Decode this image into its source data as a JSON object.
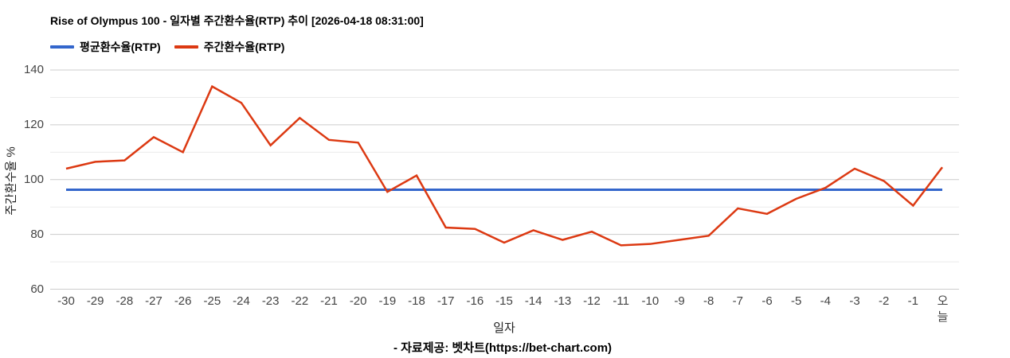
{
  "header": {
    "title": "Rise of Olympus 100 - 일자별 주간환수율(RTP) 추이 [2026-04-18 08:31:00]"
  },
  "legend": {
    "items": [
      {
        "label": "평균환수율(RTP)",
        "color": "#3366cc"
      },
      {
        "label": "주간환수율(RTP)",
        "color": "#dc3912"
      }
    ]
  },
  "footer": {
    "credit": "- 자료제공: 벳차트(https://bet-chart.com)"
  },
  "chart_data": {
    "type": "line",
    "title": "Rise of Olympus 100 - 일자별 주간환수율(RTP) 추이 [2026-04-18 08:31:00]",
    "xlabel": "일자",
    "ylabel": "주간환수율 %",
    "ylim": [
      60,
      140
    ],
    "y_ticks": [
      60,
      80,
      100,
      120,
      140
    ],
    "y_minor_ticks": [
      70,
      90,
      110,
      130
    ],
    "grid": true,
    "legend_position": "top-left",
    "colors": {
      "grid_major": "#cccccc",
      "grid_minor": "#ebebeb",
      "tick_text": "#444444"
    },
    "categories": [
      "-30",
      "-29",
      "-28",
      "-27",
      "-26",
      "-25",
      "-24",
      "-23",
      "-22",
      "-21",
      "-20",
      "-19",
      "-18",
      "-17",
      "-16",
      "-15",
      "-14",
      "-13",
      "-12",
      "-11",
      "-10",
      "-9",
      "-8",
      "-7",
      "-6",
      "-5",
      "-4",
      "-3",
      "-2",
      "-1",
      "오늘"
    ],
    "series": [
      {
        "name": "평균환수율(RTP)",
        "color": "#3366cc",
        "constant_value": 96.3
      },
      {
        "name": "주간환수율(RTP)",
        "color": "#dc3912",
        "values": [
          104,
          106.5,
          107,
          115.5,
          110,
          134,
          128,
          112.5,
          122.5,
          114.5,
          113.5,
          95.5,
          101.5,
          82.5,
          82,
          77,
          81.5,
          78,
          81,
          76,
          76.5,
          78,
          79.5,
          89.5,
          87.5,
          93,
          97,
          104,
          99.5,
          90.5,
          104.5
        ]
      }
    ]
  }
}
